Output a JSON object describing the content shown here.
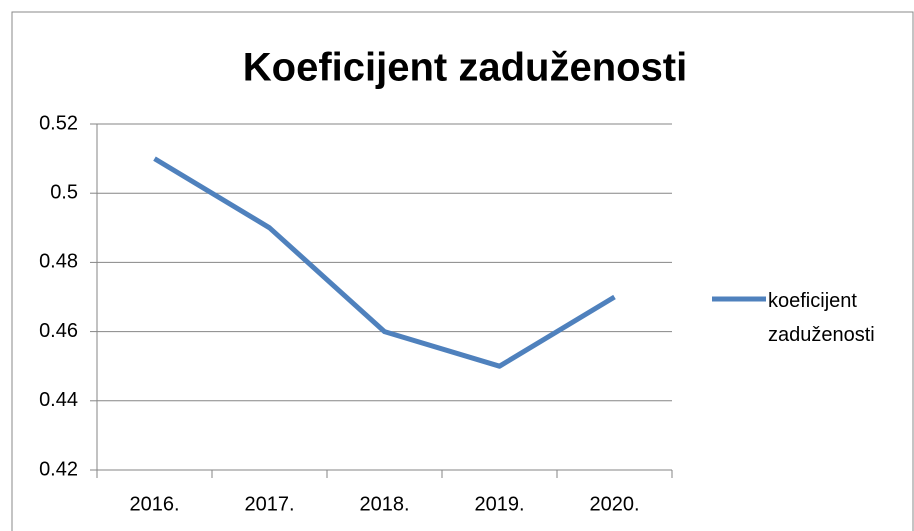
{
  "chart_data": {
    "type": "line",
    "title": "Koeficijent zaduženosti",
    "categories": [
      "2016.",
      "2017.",
      "2018.",
      "2019.",
      "2020."
    ],
    "series": [
      {
        "name": "koeficijent zaduženosti",
        "color": "#4f81bd",
        "values": [
          0.51,
          0.49,
          0.46,
          0.45,
          0.47
        ]
      }
    ],
    "ylim": [
      0.42,
      0.52
    ],
    "yticks": [
      0.42,
      0.44,
      0.46,
      0.48,
      0.5,
      0.52
    ],
    "grid": true,
    "legend": "right"
  }
}
